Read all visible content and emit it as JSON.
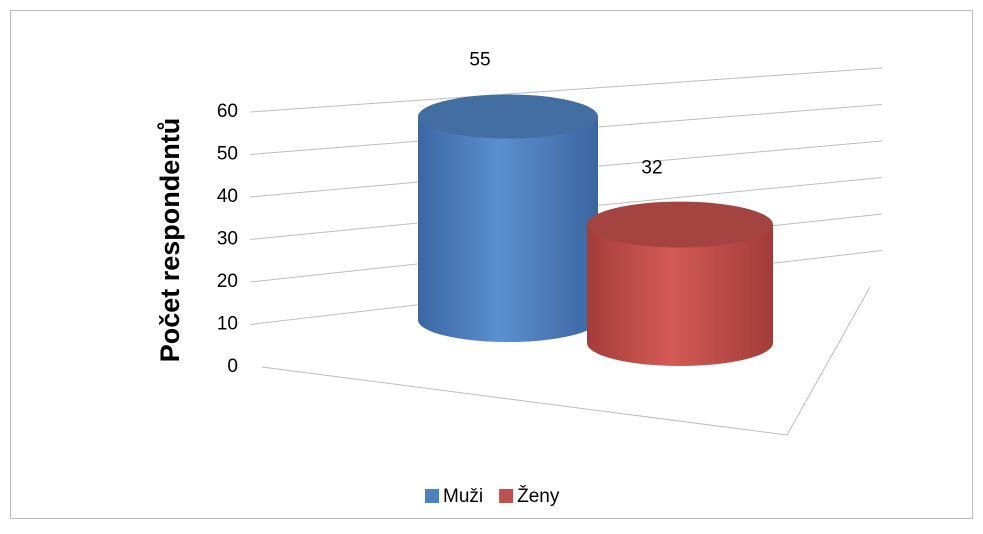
{
  "chart_data": {
    "type": "bar3d",
    "categories": [
      ""
    ],
    "series": [
      {
        "name": "Muži",
        "color": "#4f81bd",
        "values": [
          55
        ]
      },
      {
        "name": "Ženy",
        "color": "#c0504d",
        "values": [
          32
        ]
      }
    ],
    "ylabel": "Počet respondentů",
    "ylim": [
      0,
      60
    ],
    "yticks": [
      0,
      10,
      20,
      30,
      40,
      50,
      60
    ],
    "grid": true,
    "legend": "bottom"
  }
}
